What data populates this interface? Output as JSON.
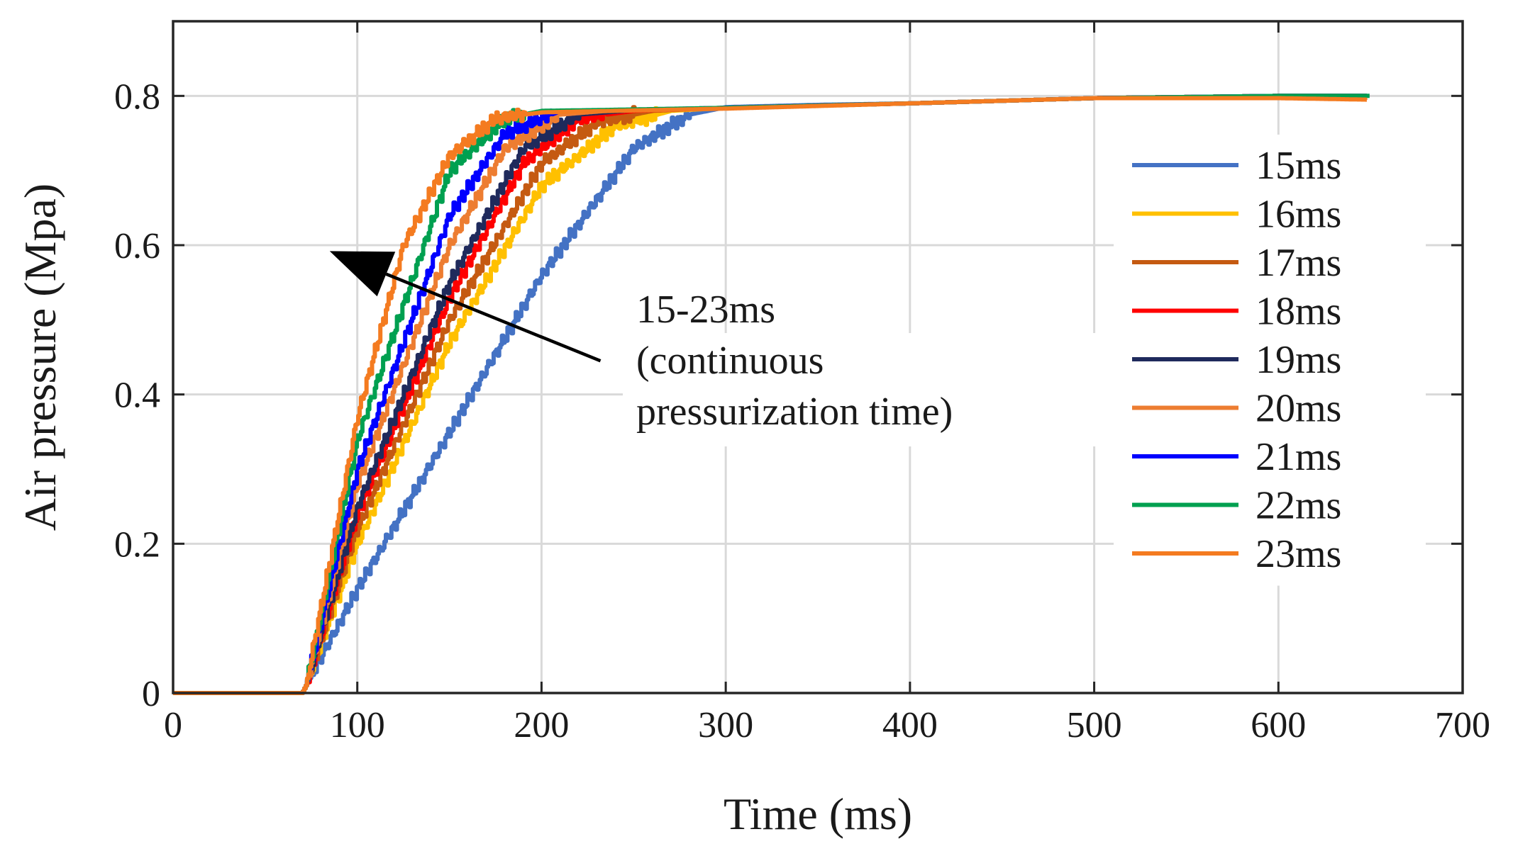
{
  "chart_data": {
    "type": "line",
    "title": "",
    "xlabel": "Time (ms)",
    "ylabel": "Air pressure (Mpa)",
    "xlim": [
      0,
      700
    ],
    "ylim": [
      0,
      0.9
    ],
    "xticks": [
      0,
      100,
      200,
      300,
      400,
      500,
      600,
      700
    ],
    "xtick_labels": [
      "0",
      "100",
      "200",
      "300",
      "400",
      "500",
      "600",
      "700"
    ],
    "yticks": [
      0,
      0.2,
      0.4,
      0.6,
      0.8
    ],
    "ytick_labels": [
      "0",
      "0.2",
      "0.4",
      "0.6",
      "0.8"
    ],
    "grid": true,
    "legend_position": "right",
    "annotation": {
      "lines": [
        "15-23ms",
        "(continuous",
        "pressurization time)"
      ],
      "arrow_from": [
        232,
        0.445
      ],
      "arrow_to": [
        85,
        0.592
      ]
    },
    "series": [
      {
        "name": "15ms",
        "color": "#4472C4",
        "x": [
          0,
          70,
          72,
          100,
          150,
          200,
          250,
          280,
          300,
          350,
          400,
          500,
          600,
          648
        ],
        "y": [
          0,
          0,
          0.01,
          0.14,
          0.35,
          0.56,
          0.73,
          0.775,
          0.785,
          0.788,
          0.79,
          0.797,
          0.8,
          0.8
        ]
      },
      {
        "name": "16ms",
        "color": "#FFC000",
        "x": [
          0,
          70,
          72,
          100,
          150,
          200,
          240,
          270,
          300,
          400,
          500,
          600,
          648
        ],
        "y": [
          0,
          0,
          0.01,
          0.2,
          0.47,
          0.68,
          0.76,
          0.78,
          0.784,
          0.79,
          0.797,
          0.8,
          0.8
        ]
      },
      {
        "name": "17ms",
        "color": "#C55A11",
        "x": [
          0,
          70,
          72,
          100,
          150,
          200,
          230,
          260,
          300,
          400,
          500,
          600,
          648
        ],
        "y": [
          0,
          0,
          0.01,
          0.22,
          0.5,
          0.71,
          0.765,
          0.78,
          0.784,
          0.79,
          0.797,
          0.8,
          0.8
        ]
      },
      {
        "name": "18ms",
        "color": "#FF0000",
        "x": [
          0,
          70,
          72,
          100,
          150,
          190,
          220,
          250,
          300,
          400,
          500,
          600,
          648
        ],
        "y": [
          0,
          0,
          0.01,
          0.24,
          0.53,
          0.71,
          0.77,
          0.78,
          0.784,
          0.79,
          0.797,
          0.8,
          0.8
        ]
      },
      {
        "name": "19ms",
        "color": "#1F2A5C",
        "x": [
          0,
          70,
          72,
          100,
          150,
          190,
          220,
          250,
          300,
          400,
          500,
          600,
          648
        ],
        "y": [
          0,
          0,
          0.01,
          0.25,
          0.55,
          0.73,
          0.775,
          0.781,
          0.784,
          0.79,
          0.797,
          0.8,
          0.8
        ]
      },
      {
        "name": "20ms",
        "color": "#ED7D31",
        "x": [
          0,
          70,
          72,
          100,
          150,
          180,
          210,
          240,
          300,
          400,
          500,
          600,
          648
        ],
        "y": [
          0,
          0,
          0.01,
          0.28,
          0.6,
          0.73,
          0.775,
          0.781,
          0.784,
          0.79,
          0.797,
          0.8,
          0.8
        ]
      },
      {
        "name": "21ms",
        "color": "#0000FF",
        "x": [
          0,
          70,
          72,
          100,
          150,
          180,
          210,
          240,
          300,
          400,
          500,
          600,
          648
        ],
        "y": [
          0,
          0,
          0.01,
          0.3,
          0.64,
          0.75,
          0.78,
          0.781,
          0.784,
          0.79,
          0.797,
          0.8,
          0.8
        ]
      },
      {
        "name": "22ms",
        "color": "#00A050",
        "x": [
          0,
          70,
          72,
          100,
          150,
          180,
          200,
          230,
          300,
          400,
          500,
          600,
          650
        ],
        "y": [
          0,
          0,
          0.01,
          0.34,
          0.7,
          0.77,
          0.78,
          0.781,
          0.784,
          0.79,
          0.797,
          0.8,
          0.8
        ]
      },
      {
        "name": "23ms",
        "color": "#F47B20",
        "x": [
          0,
          70,
          72,
          100,
          125,
          150,
          175,
          200,
          300,
          400,
          500,
          600,
          648
        ],
        "y": [
          0,
          0,
          0.01,
          0.37,
          0.6,
          0.72,
          0.77,
          0.778,
          0.783,
          0.79,
          0.797,
          0.797,
          0.795
        ]
      }
    ]
  }
}
